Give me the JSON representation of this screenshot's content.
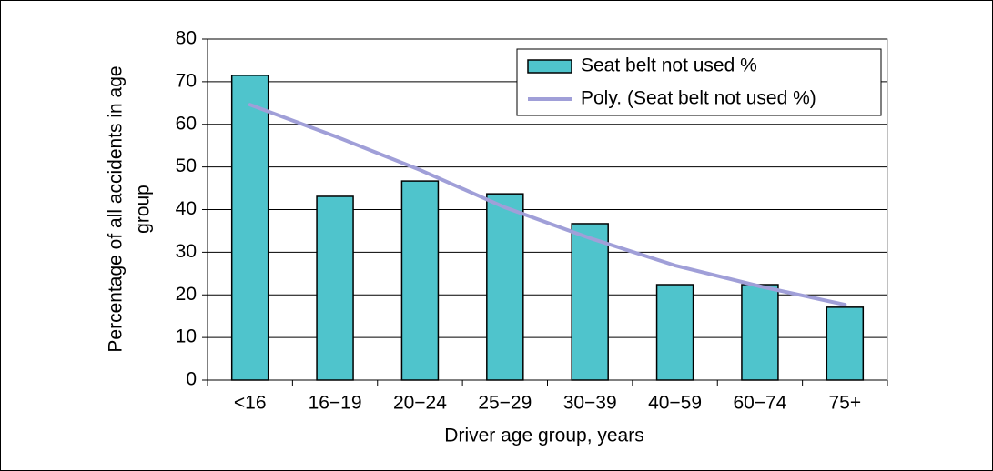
{
  "chart_data": {
    "type": "bar",
    "xlabel": "Driver age group, years",
    "ylabel": [
      "Percentage of all accidents in age",
      "group"
    ],
    "categories": [
      "<16",
      "16−19",
      "20−24",
      "25−29",
      "30−39",
      "40−59",
      "60−74",
      "75+"
    ],
    "series": [
      {
        "name": "Seat belt not used %",
        "type": "bar",
        "color": "#4fc4cc",
        "values": [
          71.5,
          43.1,
          46.7,
          43.7,
          36.7,
          22.4,
          22.4,
          17.1
        ]
      },
      {
        "name": "Poly. (Seat belt not used %)",
        "type": "line",
        "color": "#a09fd8",
        "values": [
          64.6,
          57.2,
          49.3,
          40.5,
          33.3,
          26.9,
          22.0,
          17.7
        ]
      }
    ],
    "ylim": [
      0,
      80
    ],
    "yticks": [
      0,
      10,
      20,
      30,
      40,
      50,
      60,
      70,
      80
    ],
    "grid": true,
    "legend": "top-right"
  }
}
